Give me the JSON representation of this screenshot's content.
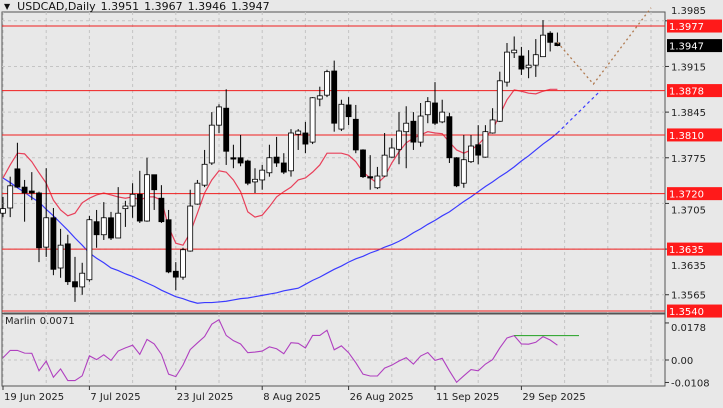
{
  "header": {
    "menu_icon": "triangle-down-icon",
    "symbol_timeframe": "USDCAD,Daily",
    "open": "1.3951",
    "high": "1.3967",
    "low": "1.3946",
    "close": "1.3947"
  },
  "chart_data": {
    "type": "candlestick",
    "ylim": [
      1.3537,
      1.39985
    ],
    "grid": true,
    "colors": {
      "background": "#e8e8e8",
      "bull_body": "#ffffff",
      "bear_body": "#000000",
      "level_lines": "#f01e1e",
      "fast_ma": "#e8405a",
      "slow_ma": "#3b3bff",
      "forecast": "#b07a50",
      "current_price_label": "#000000"
    },
    "ohlc": [
      [
        1.369,
        1.3715,
        1.3684,
        1.3697
      ],
      [
        1.3698,
        1.3746,
        1.3684,
        1.3732
      ],
      [
        1.3758,
        1.3798,
        1.3729,
        1.373
      ],
      [
        1.373,
        1.3741,
        1.3677,
        1.3721
      ],
      [
        1.3724,
        1.3753,
        1.371,
        1.3721
      ],
      [
        1.3721,
        1.3723,
        1.3615,
        1.3637
      ],
      [
        1.3638,
        1.3759,
        1.3623,
        1.3683
      ],
      [
        1.3683,
        1.3698,
        1.3595,
        1.3604
      ],
      [
        1.3606,
        1.3666,
        1.3591,
        1.3641
      ],
      [
        1.3643,
        1.3657,
        1.358,
        1.3585
      ],
      [
        1.3585,
        1.3623,
        1.3554,
        1.3577
      ],
      [
        1.3577,
        1.3614,
        1.3565,
        1.3598
      ],
      [
        1.3588,
        1.3686,
        1.3585,
        1.368
      ],
      [
        1.3677,
        1.3695,
        1.3637,
        1.3657
      ],
      [
        1.3657,
        1.3707,
        1.3649,
        1.3683
      ],
      [
        1.3683,
        1.3692,
        1.3649,
        1.3652
      ],
      [
        1.3652,
        1.373,
        1.3652,
        1.369
      ],
      [
        1.3697,
        1.3709,
        1.3669,
        1.3701
      ],
      [
        1.3701,
        1.3736,
        1.3683,
        1.3719
      ],
      [
        1.3719,
        1.3755,
        1.3675,
        1.3678
      ],
      [
        1.3678,
        1.3775,
        1.3677,
        1.3749
      ],
      [
        1.3749,
        1.3749,
        1.3695,
        1.3726
      ],
      [
        1.3713,
        1.3733,
        1.3675,
        1.3677
      ],
      [
        1.368,
        1.3695,
        1.3598,
        1.36
      ],
      [
        1.3601,
        1.3615,
        1.3572,
        1.3592
      ],
      [
        1.3592,
        1.3637,
        1.3588,
        1.3634
      ],
      [
        1.3632,
        1.3726,
        1.3631,
        1.3701
      ],
      [
        1.3704,
        1.3741,
        1.3703,
        1.3736
      ],
      [
        1.3733,
        1.3787,
        1.373,
        1.3765
      ],
      [
        1.3767,
        1.3845,
        1.3764,
        1.3825
      ],
      [
        1.3825,
        1.3857,
        1.3813,
        1.3853
      ],
      [
        1.3851,
        1.388,
        1.3764,
        1.3785
      ],
      [
        1.3775,
        1.3795,
        1.3759,
        1.3773
      ],
      [
        1.3775,
        1.381,
        1.3762,
        1.3767
      ],
      [
        1.377,
        1.3772,
        1.3733,
        1.3736
      ],
      [
        1.3738,
        1.3759,
        1.3721,
        1.3742
      ],
      [
        1.3741,
        1.3764,
        1.3726,
        1.3756
      ],
      [
        1.3752,
        1.3795,
        1.3746,
        1.3775
      ],
      [
        1.3776,
        1.3807,
        1.3761,
        1.3767
      ],
      [
        1.3767,
        1.3782,
        1.375,
        1.3753
      ],
      [
        1.3755,
        1.3819,
        1.3746,
        1.3813
      ],
      [
        1.3811,
        1.3819,
        1.3787,
        1.3816
      ],
      [
        1.3813,
        1.383,
        1.3782,
        1.3796
      ],
      [
        1.3799,
        1.3868,
        1.3796,
        1.3867
      ],
      [
        1.3865,
        1.3884,
        1.3854,
        1.387
      ],
      [
        1.3871,
        1.391,
        1.3868,
        1.3907
      ],
      [
        1.3908,
        1.3924,
        1.3815,
        1.3828
      ],
      [
        1.3819,
        1.3864,
        1.3816,
        1.3857
      ],
      [
        1.3856,
        1.3868,
        1.3825,
        1.3838
      ],
      [
        1.3834,
        1.3856,
        1.3782,
        1.3787
      ],
      [
        1.3787,
        1.3788,
        1.3744,
        1.3746
      ],
      [
        1.3746,
        1.3779,
        1.3726,
        1.3744
      ],
      [
        1.3729,
        1.3761,
        1.3727,
        1.3747
      ],
      [
        1.3747,
        1.3813,
        1.3746,
        1.3779
      ],
      [
        1.3776,
        1.3805,
        1.3775,
        1.379
      ],
      [
        1.3788,
        1.3845,
        1.3765,
        1.3816
      ],
      [
        1.3815,
        1.3854,
        1.3759,
        1.3828
      ],
      [
        1.3831,
        1.3845,
        1.3787,
        1.3799
      ],
      [
        1.3799,
        1.3859,
        1.3792,
        1.3839
      ],
      [
        1.3841,
        1.3868,
        1.3828,
        1.3861
      ],
      [
        1.3859,
        1.3891,
        1.3825,
        1.3828
      ],
      [
        1.383,
        1.3864,
        1.3828,
        1.3845
      ],
      [
        1.3838,
        1.3844,
        1.3767,
        1.3775
      ],
      [
        1.3775,
        1.3776,
        1.373,
        1.3732
      ],
      [
        1.3736,
        1.381,
        1.3729,
        1.3772
      ],
      [
        1.3769,
        1.381,
        1.3767,
        1.3793
      ],
      [
        1.3795,
        1.3825,
        1.3765,
        1.3779
      ],
      [
        1.3776,
        1.3825,
        1.3775,
        1.3815
      ],
      [
        1.3813,
        1.3851,
        1.3812,
        1.3833
      ],
      [
        1.3831,
        1.3907,
        1.383,
        1.3893
      ],
      [
        1.3891,
        1.3951,
        1.3884,
        1.3937
      ],
      [
        1.3936,
        1.3961,
        1.3928,
        1.394
      ],
      [
        1.3931,
        1.3945,
        1.3902,
        1.3911
      ],
      [
        1.3913,
        1.394,
        1.3897,
        1.3917
      ],
      [
        1.3917,
        1.3957,
        1.3899,
        1.3933
      ],
      [
        1.393,
        1.3986,
        1.393,
        1.3963
      ],
      [
        1.3966,
        1.3969,
        1.3938,
        1.3952
      ],
      [
        1.3951,
        1.3967,
        1.3946,
        1.3947
      ]
    ],
    "fast_ma": [
      1.3744,
      1.3764,
      1.3782,
      1.3781,
      1.3769,
      1.3752,
      1.3736,
      1.371,
      1.3695,
      1.3686,
      1.369,
      1.3706,
      1.3713,
      1.3718,
      1.3721,
      1.3718,
      1.3715,
      1.3713,
      1.3715,
      1.371,
      1.3715,
      1.3715,
      1.371,
      1.3669,
      1.3644,
      1.3641,
      1.366,
      1.369,
      1.3721,
      1.3741,
      1.3755,
      1.3753,
      1.3741,
      1.3723,
      1.3692,
      1.3684,
      1.3687,
      1.37,
      1.3715,
      1.3723,
      1.373,
      1.3741,
      1.3744,
      1.3753,
      1.3764,
      1.3782,
      1.3782,
      1.3782,
      1.3779,
      1.3769,
      1.3753,
      1.3744,
      1.3736,
      1.3746,
      1.3767,
      1.3784,
      1.3798,
      1.3805,
      1.381,
      1.3815,
      1.3813,
      1.3812,
      1.3799,
      1.3787,
      1.3782,
      1.3787,
      1.3795,
      1.3807,
      1.3818,
      1.3841,
      1.3864,
      1.3879,
      1.3877,
      1.3874,
      1.3873,
      1.3877,
      1.388,
      1.388
    ],
    "slow_ma": [
      1.3744,
      1.3737,
      1.3729,
      1.3722,
      1.3714,
      1.3707,
      1.3696,
      1.3686,
      1.3675,
      1.3664,
      1.3652,
      1.3641,
      1.3629,
      1.3621,
      1.3614,
      1.3606,
      1.3602,
      1.3597,
      1.3593,
      1.3588,
      1.3583,
      1.3578,
      1.3572,
      1.3567,
      1.3562,
      1.3559,
      1.3555,
      1.3552,
      1.3553,
      1.3553,
      1.3554,
      1.3555,
      1.3557,
      1.3559,
      1.356,
      1.3562,
      1.3564,
      1.3566,
      1.3568,
      1.3571,
      1.3573,
      1.3575,
      1.3581,
      1.3587,
      1.3592,
      1.3598,
      1.3604,
      1.3609,
      1.3615,
      1.362,
      1.3624,
      1.3629,
      1.3633,
      1.3638,
      1.3642,
      1.3647,
      1.3653,
      1.366,
      1.3666,
      1.3673,
      1.3679,
      1.3686,
      1.3692,
      1.37,
      1.3708,
      1.3715,
      1.3723,
      1.3731,
      1.3738,
      1.3746,
      1.3753,
      1.3761,
      1.377,
      1.3778,
      1.3787,
      1.3796,
      1.3804,
      1.3813
    ],
    "slow_ma_projection": [
      {
        "bars_ahead": 0,
        "price": 1.3813
      },
      {
        "bars_ahead": 6,
        "price": 1.3878
      }
    ],
    "forecast_path": [
      {
        "bars_ahead": 0,
        "price": 1.3952
      },
      {
        "bars_ahead": 5,
        "price": 1.3888
      },
      {
        "bars_ahead": 13,
        "price": 1.4005
      }
    ],
    "levels": [
      "1.3977",
      "1.3878",
      "1.3810",
      "1.3720",
      "1.3635",
      "1.3540"
    ],
    "price_axis_ticks": [
      "1.3985",
      "1.3915",
      "1.3845",
      "1.3775",
      "1.3705",
      "1.3635",
      "1.3565"
    ],
    "current_price": "1.3947",
    "date_ticks": [
      "19 Jun 2025",
      "7 Jul 2025",
      "23 Jul 2025",
      "8 Aug 2025",
      "26 Aug 2025",
      "11 Sep 2025",
      "29 Sep 2025"
    ],
    "bars_per_date_tick": 12
  },
  "indicator": {
    "name": "Marlin",
    "value": "0.0071",
    "ylim": [
      -0.0125,
      0.0221
    ],
    "axis_ticks": [
      "0.0178",
      "0.00",
      "-0.0108"
    ],
    "line_color": "#b040c0",
    "signal_color": "#20a020",
    "values": [
      0.0011,
      0.0046,
      0.0046,
      0.0033,
      0.0032,
      -0.0052,
      -0.0005,
      -0.0083,
      -0.0043,
      -0.0099,
      -0.0099,
      -0.0076,
      0.002,
      0.0002,
      0.0025,
      -0.0002,
      0.0043,
      0.0058,
      0.0071,
      0.0027,
      0.0099,
      0.0077,
      0.0027,
      -0.0068,
      -0.008,
      -0.0024,
      0.005,
      0.0082,
      0.0113,
      0.0172,
      0.0194,
      0.0118,
      0.0093,
      0.0077,
      0.0035,
      0.0038,
      0.0043,
      0.0063,
      0.0054,
      0.003,
      0.0083,
      0.008,
      0.0058,
      0.0118,
      0.0118,
      0.0143,
      0.0049,
      0.0068,
      0.0035,
      -0.0013,
      -0.0068,
      -0.0077,
      -0.0077,
      -0.0039,
      -0.0025,
      -0.0005,
      0.0011,
      -0.002,
      0.0019,
      0.0036,
      -0.0002,
      0.0008,
      -0.0052,
      -0.0107,
      -0.0076,
      -0.0046,
      -0.0052,
      -0.002,
      0.0002,
      0.0058,
      0.0106,
      0.0117,
      0.0077,
      0.0076,
      0.0085,
      0.0112,
      0.0096,
      0.0071
    ],
    "signal_line": {
      "level": 0.0117,
      "from_bar": 71,
      "to_bar": 80
    }
  }
}
